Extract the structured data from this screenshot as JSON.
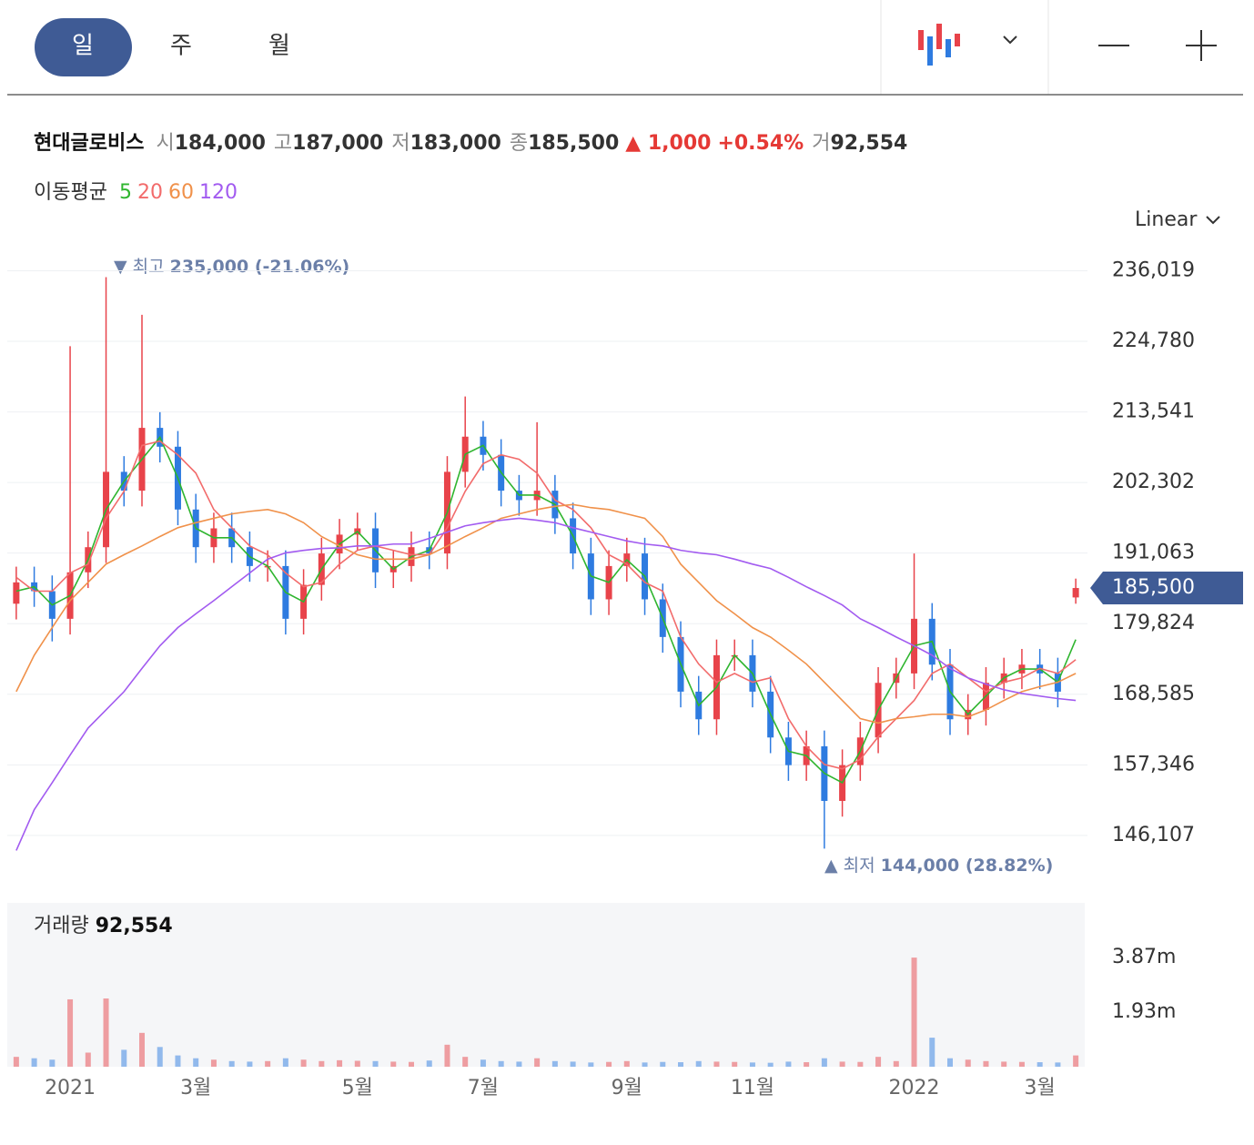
{
  "tabs": [
    "일",
    "주",
    "월"
  ],
  "header": {
    "name": "현대글로비스",
    "fields": [
      {
        "label": "시",
        "value": "184,000"
      },
      {
        "label": "고",
        "value": "187,000"
      },
      {
        "label": "저",
        "value": "183,000"
      },
      {
        "label": "종",
        "value": "185,500"
      }
    ],
    "change": "▲ 1,000",
    "change_pct": "+0.54%",
    "volume_label": "거",
    "volume": "92,554"
  },
  "chart_data": {
    "type": "candlestick",
    "legend_title": "이동평균",
    "scale_mode": "Linear",
    "categories": [
      null,
      null,
      null,
      "2021",
      null,
      null,
      null,
      null,
      null,
      null,
      "3월",
      null,
      null,
      null,
      null,
      null,
      null,
      null,
      null,
      "5월",
      null,
      null,
      null,
      null,
      null,
      null,
      "7월",
      null,
      null,
      null,
      null,
      null,
      null,
      null,
      "9월",
      null,
      null,
      null,
      null,
      null,
      null,
      "11월",
      null,
      null,
      null,
      null,
      null,
      null,
      null,
      null,
      "2022",
      null,
      null,
      null,
      null,
      null,
      null,
      "3월",
      null,
      null
    ],
    "open": [
      183000,
      186400,
      185000,
      180600,
      188000,
      192000,
      204000,
      201000,
      211000,
      208000,
      198000,
      192000,
      195000,
      192000,
      189000,
      189000,
      180600,
      186000,
      191000,
      194000,
      195000,
      188000,
      189000,
      192000,
      191000,
      204000,
      209600,
      206700,
      201000,
      199500,
      201000,
      196600,
      191000,
      183700,
      189000,
      191000,
      183700,
      177700,
      169000,
      164600,
      174800,
      174800,
      169000,
      161700,
      157300,
      160300,
      151600,
      157300,
      161700,
      170400,
      171900,
      180600,
      173300,
      164600,
      166100,
      170400,
      171900,
      173300,
      171900,
      184000
    ],
    "high": [
      188900,
      188900,
      187500,
      224000,
      194500,
      235000,
      206500,
      229000,
      213500,
      210500,
      200500,
      197500,
      197500,
      194500,
      191500,
      191500,
      188500,
      193500,
      196500,
      197500,
      197500,
      191500,
      194500,
      194500,
      206500,
      216000,
      212100,
      209200,
      203500,
      211900,
      203500,
      199100,
      193500,
      191500,
      193500,
      193500,
      186200,
      180200,
      171500,
      177300,
      177300,
      177300,
      171500,
      164200,
      162800,
      162800,
      159800,
      164200,
      172900,
      174400,
      191000,
      183100,
      175800,
      168600,
      172900,
      174400,
      175800,
      175800,
      174400,
      187000
    ],
    "low": [
      180500,
      182500,
      177000,
      178100,
      185500,
      189500,
      198500,
      198500,
      205500,
      195500,
      189500,
      189500,
      189500,
      186500,
      186500,
      178100,
      178100,
      183500,
      188500,
      191500,
      185500,
      185500,
      186500,
      188500,
      188500,
      201500,
      204200,
      198500,
      197000,
      197000,
      194100,
      188500,
      181200,
      181200,
      186500,
      181200,
      175200,
      166500,
      162100,
      162100,
      172300,
      166500,
      159200,
      154800,
      154800,
      144000,
      149100,
      154800,
      159200,
      167900,
      169400,
      170800,
      162100,
      162100,
      163600,
      167900,
      169400,
      169400,
      166500,
      183000
    ],
    "close": [
      186400,
      185000,
      180600,
      188000,
      192000,
      204000,
      201000,
      211000,
      208000,
      198000,
      192000,
      195000,
      192000,
      189000,
      189000,
      180600,
      186000,
      191000,
      194000,
      195000,
      188000,
      189000,
      192000,
      191000,
      204000,
      209600,
      206700,
      201000,
      199500,
      201000,
      196600,
      191000,
      183700,
      189000,
      191000,
      183700,
      177700,
      169000,
      164600,
      174800,
      174800,
      169000,
      161700,
      157300,
      160300,
      151600,
      157300,
      161700,
      170400,
      171900,
      180600,
      173300,
      164600,
      166100,
      170400,
      171900,
      173300,
      171900,
      169000,
      185500
    ],
    "volume": [
      350000,
      300000,
      250000,
      2390000,
      500000,
      2420000,
      600000,
      1200000,
      700000,
      400000,
      300000,
      250000,
      200000,
      180000,
      200000,
      300000,
      250000,
      200000,
      230000,
      210000,
      200000,
      180000,
      170000,
      220000,
      780000,
      350000,
      250000,
      200000,
      180000,
      300000,
      200000,
      180000,
      150000,
      170000,
      200000,
      150000,
      170000,
      160000,
      200000,
      180000,
      170000,
      150000,
      140000,
      180000,
      160000,
      300000,
      180000,
      170000,
      350000,
      200000,
      3870000,
      1030000,
      300000,
      250000,
      200000,
      180000,
      170000,
      160000,
      150000,
      400000
    ],
    "up_color": "#e8434a",
    "down_color": "#2e7be0",
    "series": [
      {
        "name": "5",
        "color": "#2fb52f",
        "values": [
          185000,
          185700,
          182800,
          184300,
          190000,
          198000,
          202500,
          206000,
          209500,
          203000,
          195000,
          193500,
          193500,
          190500,
          189000,
          184800,
          183300,
          188500,
          192500,
          194500,
          191500,
          188500,
          190500,
          191500,
          197500,
          206800,
          208200,
          203900,
          200300,
          200300,
          198800,
          193800,
          187400,
          186400,
          190000,
          187400,
          180700,
          173400,
          166800,
          169700,
          174800,
          171900,
          165400,
          159500,
          158800,
          156000,
          154500,
          159500,
          166100,
          171200,
          176300,
          177000,
          169000,
          165400,
          168300,
          171200,
          172600,
          172600,
          170500,
          177300
        ]
      },
      {
        "name": "20",
        "color": "#f26b6b",
        "values": [
          187200,
          185000,
          185000,
          187900,
          189300,
          196600,
          200900,
          208200,
          208900,
          206700,
          203800,
          198000,
          195100,
          192200,
          190800,
          187900,
          185700,
          186400,
          189300,
          191500,
          192200,
          191500,
          190800,
          190800,
          195100,
          200900,
          205300,
          206700,
          206000,
          203800,
          199500,
          198000,
          195100,
          190800,
          189300,
          186400,
          185000,
          177700,
          173400,
          170500,
          171900,
          170500,
          171200,
          164700,
          160300,
          157400,
          156700,
          158200,
          161800,
          164700,
          167600,
          171900,
          173400,
          171200,
          169000,
          170500,
          171200,
          172700,
          171900,
          174100
        ]
      },
      {
        "name": "60",
        "color": "#f0914a",
        "values": [
          169000,
          174800,
          179200,
          183500,
          186400,
          189300,
          190800,
          192200,
          193700,
          195100,
          195900,
          196600,
          197300,
          197700,
          198000,
          197300,
          195900,
          193700,
          192200,
          190800,
          190100,
          190100,
          190100,
          190800,
          192200,
          193700,
          195100,
          196600,
          197300,
          198000,
          198500,
          198800,
          198300,
          198000,
          197300,
          196600,
          193700,
          189300,
          186400,
          183500,
          181400,
          179200,
          177700,
          175600,
          173400,
          170500,
          167600,
          164700,
          164000,
          164700,
          165000,
          165400,
          165400,
          165000,
          166100,
          167600,
          169000,
          169800,
          170500,
          171900
        ]
      },
      {
        "name": "120",
        "color": "#a25bf0",
        "values": [
          143700,
          150200,
          154500,
          158900,
          163200,
          166100,
          169000,
          172700,
          176300,
          179200,
          181400,
          183500,
          185700,
          187900,
          190100,
          191100,
          191500,
          191800,
          191900,
          192200,
          192200,
          192500,
          192500,
          193400,
          194400,
          195400,
          195900,
          196300,
          196600,
          196300,
          195900,
          195100,
          194400,
          193700,
          193000,
          192500,
          192200,
          191500,
          191100,
          190800,
          190100,
          189300,
          188600,
          187200,
          185700,
          184300,
          182800,
          180600,
          179200,
          177700,
          176300,
          174800,
          172700,
          171200,
          170200,
          169300,
          168700,
          168300,
          167900,
          167600
        ]
      }
    ],
    "ylim": [
      140000,
      240000
    ],
    "yticks": [
      {
        "value": 146107,
        "label": "146,107"
      },
      {
        "value": 157346,
        "label": "157,346"
      },
      {
        "value": 168585,
        "label": "168,585"
      },
      {
        "value": 179824,
        "label": "179,824"
      },
      {
        "value": 191063,
        "label": "191,063"
      },
      {
        "value": 202302,
        "label": "202,302"
      },
      {
        "value": 213541,
        "label": "213,541"
      },
      {
        "value": 224780,
        "label": "224,780"
      },
      {
        "value": 236019,
        "label": "236,019"
      }
    ],
    "grid": true,
    "current_price": {
      "value": 185500,
      "label": "185,500"
    },
    "max_annotation": {
      "label": "▼ 최고",
      "text": "235,000 (-21.06%)"
    },
    "min_annotation": {
      "label": "▲ 최저",
      "text": "144,000 (28.82%)"
    },
    "volume_title": "거래량",
    "volume_value": "92,554",
    "volume_ylim": [
      0,
      5810000
    ],
    "volume_yticks": [
      {
        "value": 1930000,
        "label": "1.93m"
      },
      {
        "value": 3870000,
        "label": "3.87m"
      }
    ]
  }
}
